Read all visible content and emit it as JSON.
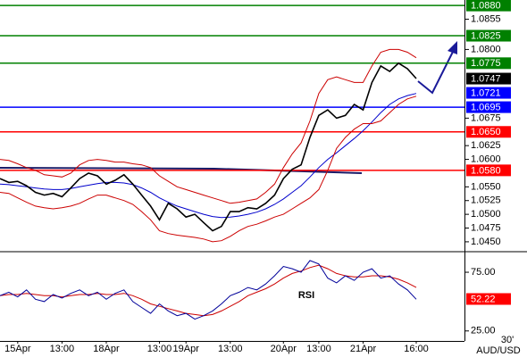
{
  "chart_data": [
    {
      "type": "line",
      "series": [
        {
          "color": "#000000",
          "values": [
            1.0565,
            1.0558,
            1.056,
            1.0552,
            1.054,
            1.0535,
            1.0538,
            1.0532,
            1.0548,
            1.0565,
            1.0575,
            1.057,
            1.0555,
            1.0562,
            1.0572,
            1.0555,
            1.0535,
            1.0515,
            1.049,
            1.052,
            1.051,
            1.0495,
            1.05,
            1.0485,
            1.047,
            1.0478,
            1.0505,
            1.0505,
            1.0512,
            1.051,
            1.052,
            1.0535,
            1.0565,
            1.0582,
            1.059,
            1.064,
            1.068,
            1.069,
            1.0675,
            1.068,
            1.07,
            1.069,
            1.074,
            1.077,
            1.076,
            1.0775,
            1.0765,
            1.0747
          ]
        },
        {
          "color": "#cc0000",
          "values": [
            1.06,
            1.0598,
            1.0592,
            1.0585,
            1.058,
            1.0572,
            1.057,
            1.0568,
            1.0575,
            1.059,
            1.0598,
            1.06,
            1.0598,
            1.0595,
            1.0595,
            1.0592,
            1.059,
            1.0585,
            1.057,
            1.056,
            1.055,
            1.0545,
            1.054,
            1.0535,
            1.053,
            1.0525,
            1.052,
            1.0522,
            1.0525,
            1.0528,
            1.054,
            1.0555,
            1.0585,
            1.061,
            1.063,
            1.067,
            1.072,
            1.0745,
            1.075,
            1.0745,
            1.074,
            1.074,
            1.077,
            1.0795,
            1.08,
            1.08,
            1.0795,
            1.0785
          ]
        },
        {
          "color": "#cc0000",
          "values": [
            1.054,
            1.0538,
            1.053,
            1.0522,
            1.0515,
            1.0512,
            1.051,
            1.0512,
            1.0515,
            1.052,
            1.0528,
            1.0535,
            1.0535,
            1.053,
            1.0525,
            1.0518,
            1.0505,
            1.049,
            1.047,
            1.0465,
            1.0462,
            1.046,
            1.0458,
            1.0455,
            1.045,
            1.0452,
            1.046,
            1.047,
            1.0478,
            1.0482,
            1.0488,
            1.0495,
            1.05,
            1.051,
            1.052,
            1.053,
            1.0545,
            1.058,
            1.062,
            1.064,
            1.0655,
            1.0665,
            1.0665,
            1.067,
            1.0685,
            1.07,
            1.071,
            1.0715
          ]
        },
        {
          "color": "#0000cc",
          "values": [
            1.0555,
            1.0554,
            1.0552,
            1.055,
            1.0548,
            1.0546,
            1.0545,
            1.0545,
            1.0547,
            1.055,
            1.0553,
            1.0556,
            1.0558,
            1.0558,
            1.0557,
            1.0554,
            1.0548,
            1.054,
            1.053,
            1.0522,
            1.0515,
            1.051,
            1.0505,
            1.05,
            1.0496,
            1.0494,
            1.0495,
            1.0497,
            1.05,
            1.0504,
            1.051,
            1.0518,
            1.0528,
            1.054,
            1.0552,
            1.0568,
            1.0585,
            1.06,
            1.0612,
            1.0625,
            1.0638,
            1.0652,
            1.0668,
            1.0685,
            1.07,
            1.071,
            1.0716,
            1.072
          ]
        }
      ],
      "ylim": [
        1.0432,
        1.089
      ],
      "yticks": [
        1.0855,
        {
          "value": 1.08,
          "label": "1.0800"
        },
        1.0675,
        1.0625,
        {
          "value": 1.06,
          "label": "1.0600"
        },
        {
          "value": 1.055,
          "label": "1.0550"
        },
        1.0525,
        {
          "value": 1.05,
          "label": "1.0500"
        },
        1.0475,
        {
          "value": 1.045,
          "label": "1.0450"
        }
      ],
      "levels": [
        {
          "value": 1.088,
          "label": "1.0880",
          "color": "#008000",
          "line": true
        },
        {
          "value": 1.0825,
          "color": "#008000",
          "line": true
        },
        {
          "value": 1.0775,
          "color": "#008000",
          "line": true
        },
        {
          "value": 1.0747,
          "color": "#000000",
          "line": false
        },
        {
          "value": 1.0721,
          "color": "#0000ff",
          "line": false
        },
        {
          "value": 1.0695,
          "color": "#0000ff",
          "line": true
        },
        {
          "value": 1.065,
          "label": "1.0650",
          "color": "#ff0000",
          "line": true
        },
        {
          "value": 1.058,
          "label": "1.0580",
          "color": "#ff0000",
          "line": true
        }
      ]
    },
    {
      "type": "line",
      "annotation": "RSI",
      "categories": [
        null,
        null,
        "15Apr",
        null,
        null,
        null,
        null,
        "13:00",
        null,
        null,
        null,
        null,
        "18Apr",
        null,
        null,
        null,
        null,
        null,
        "13:00",
        null,
        null,
        "19Apr",
        null,
        null,
        null,
        null,
        "13:00",
        null,
        null,
        null,
        null,
        null,
        "20Apr",
        null,
        null,
        null,
        "13:00",
        null,
        null,
        null,
        null,
        "21Apr",
        null,
        null,
        null,
        null,
        null,
        "16:00"
      ],
      "series": [
        {
          "color": "#000099",
          "values": [
            55,
            58,
            54,
            60,
            52,
            50,
            56,
            53,
            57,
            60,
            55,
            58,
            52,
            57,
            60,
            50,
            45,
            40,
            48,
            42,
            38,
            40,
            35,
            38,
            42,
            48,
            55,
            58,
            62,
            60,
            65,
            72,
            80,
            78,
            75,
            85,
            82,
            70,
            66,
            72,
            68,
            75,
            78,
            70,
            72,
            65,
            60,
            52
          ]
        },
        {
          "color": "#cc0000",
          "values": [
            55,
            56,
            56,
            57,
            56,
            55,
            55,
            54,
            55,
            56,
            56,
            57,
            56,
            56,
            57,
            55,
            52,
            48,
            46,
            44,
            42,
            40,
            39,
            38,
            39,
            42,
            46,
            50,
            55,
            58,
            61,
            65,
            70,
            74,
            76,
            79,
            81,
            78,
            74,
            72,
            71,
            71,
            72,
            72,
            71,
            69,
            66,
            62
          ]
        }
      ],
      "ylim": [
        18,
        91
      ],
      "yticks": [
        {
          "value": 75,
          "label": "75.00"
        },
        {
          "value": 25,
          "label": "25.00"
        }
      ],
      "levels": [
        {
          "value": 52.22,
          "color": "#ff0000",
          "line": false
        }
      ]
    }
  ],
  "footer": {
    "timeframe": "30'",
    "symbol": "AUD/USD"
  }
}
